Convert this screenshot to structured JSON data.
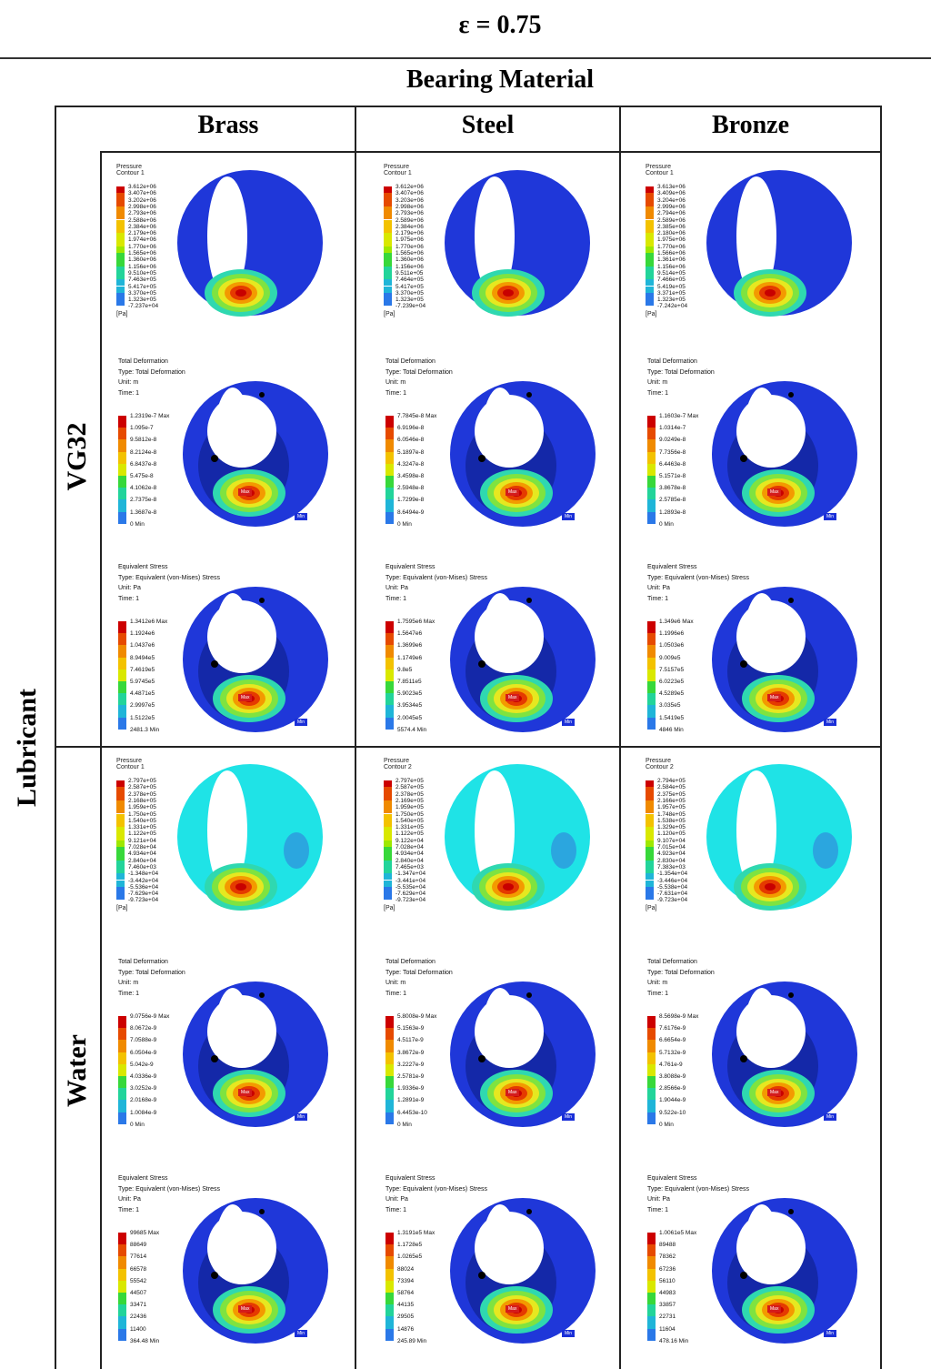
{
  "epsilon": "ε = 0.75",
  "group_header": "Bearing Material",
  "row_group_label": "Lubricant",
  "columns": [
    "Brass",
    "Steel",
    "Bronze"
  ],
  "rows": [
    "VG32",
    "Water"
  ],
  "colors": {
    "legend": [
      "#cc0000",
      "#e64a00",
      "#f08a00",
      "#f3c200",
      "#d9e800",
      "#9ee800",
      "#37d83a",
      "#22d49a",
      "#1fb5d8",
      "#2a78e8",
      "#1e3fe0"
    ],
    "bearing_blue": "#1f37d9",
    "water_cyan": "#1fe3e6"
  },
  "panels": {
    "VG32": {
      "Brass": {
        "pressure": {
          "title": [
            "Pressure",
            "Contour 1"
          ],
          "unit": "[Pa]",
          "values": [
            "3.612e+06",
            "3.407e+06",
            "3.202e+06",
            "2.998e+06",
            "2.793e+06",
            "2.588e+06",
            "2.384e+06",
            "2.179e+06",
            "1.974e+06",
            "1.770e+06",
            "1.565e+06",
            "1.360e+06",
            "1.156e+06",
            "9.510e+05",
            "7.463e+05",
            "5.417e+05",
            "3.370e+05",
            "1.323e+05",
            "-7.237e+04"
          ]
        },
        "deformation": {
          "title": [
            "Total Deformation",
            "Type: Total Deformation",
            "Unit: m",
            "Time: 1"
          ],
          "values": [
            "1.2319e-7 Max",
            "1.095e-7",
            "9.5812e-8",
            "8.2124e-8",
            "6.8437e-8",
            "5.475e-8",
            "4.1062e-8",
            "2.7375e-8",
            "1.3687e-8",
            "0 Min"
          ]
        },
        "stress": {
          "title": [
            "Equivalent Stress",
            "Type: Equivalent (von-Mises) Stress",
            "Unit: Pa",
            "Time: 1"
          ],
          "values": [
            "1.3412e6 Max",
            "1.1924e6",
            "1.0437e6",
            "8.9494e5",
            "7.4619e5",
            "5.9745e5",
            "4.4871e5",
            "2.9997e5",
            "1.5122e5",
            "2481.3 Min"
          ]
        }
      },
      "Steel": {
        "pressure": {
          "title": [
            "Pressure",
            "Contour 1"
          ],
          "unit": "[Pa]",
          "values": [
            "3.612e+06",
            "3.407e+06",
            "3.203e+06",
            "2.998e+06",
            "2.793e+06",
            "2.589e+06",
            "2.384e+06",
            "2.179e+06",
            "1.975e+06",
            "1.770e+06",
            "1.565e+06",
            "1.360e+06",
            "1.156e+06",
            "9.511e+05",
            "7.464e+05",
            "5.417e+05",
            "3.370e+05",
            "1.323e+05",
            "-7.239e+04"
          ]
        },
        "deformation": {
          "title": [
            "Total Deformation",
            "Type: Total Deformation",
            "Unit: m",
            "Time: 1"
          ],
          "values": [
            "7.7845e-8 Max",
            "6.9196e-8",
            "6.0546e-8",
            "5.1897e-8",
            "4.3247e-8",
            "3.4598e-8",
            "2.5948e-8",
            "1.7299e-8",
            "8.6494e-9",
            "0 Min"
          ]
        },
        "stress": {
          "title": [
            "Equivalent Stress",
            "Type: Equivalent (von-Mises) Stress",
            "Unit: Pa",
            "Time: 1"
          ],
          "values": [
            "1.7595e6 Max",
            "1.5647e6",
            "1.3699e6",
            "1.1749e6",
            "9.8e5",
            "7.8511e5",
            "5.9023e5",
            "3.9534e5",
            "2.0045e5",
            "5574.4 Min"
          ]
        }
      },
      "Bronze": {
        "pressure": {
          "title": [
            "Pressure",
            "Contour 1"
          ],
          "unit": "[Pa]",
          "values": [
            "3.613e+06",
            "3.409e+06",
            "3.204e+06",
            "2.999e+06",
            "2.794e+06",
            "2.589e+06",
            "2.385e+06",
            "2.180e+06",
            "1.975e+06",
            "1.770e+06",
            "1.566e+06",
            "1.361e+06",
            "1.156e+06",
            "9.514e+05",
            "7.466e+05",
            "5.419e+05",
            "3.371e+05",
            "1.323e+05",
            "-7.242e+04"
          ]
        },
        "deformation": {
          "title": [
            "Total Deformation",
            "Type: Total Deformation",
            "Unit: m",
            "Time: 1"
          ],
          "values": [
            "1.1603e-7 Max",
            "1.0314e-7",
            "9.0249e-8",
            "7.7356e-8",
            "6.4463e-8",
            "5.1571e-8",
            "3.8678e-8",
            "2.5785e-8",
            "1.2893e-8",
            "0 Min"
          ]
        },
        "stress": {
          "title": [
            "Equivalent Stress",
            "Type: Equivalent (von-Mises) Stress",
            "Unit: Pa",
            "Time: 1"
          ],
          "values": [
            "1.349e6 Max",
            "1.1996e6",
            "1.0503e6",
            "9.009e5",
            "7.5157e5",
            "6.0223e5",
            "4.5289e5",
            "3.035e5",
            "1.5419e5",
            "4846 Min"
          ]
        }
      }
    },
    "Water": {
      "Brass": {
        "pressure": {
          "title": [
            "Pressure",
            "Contour 1"
          ],
          "unit": "[Pa]",
          "values": [
            "2.797e+05",
            "2.587e+05",
            "2.378e+05",
            "2.168e+05",
            "1.959e+05",
            "1.750e+05",
            "1.540e+05",
            "1.331e+05",
            "1.122e+05",
            "9.121e+04",
            "7.028e+04",
            "4.934e+04",
            "2.840e+04",
            "7.460e+03",
            "-1.348e+04",
            "-3.442e+04",
            "-5.536e+04",
            "-7.629e+04",
            "-9.723e+04"
          ]
        },
        "deformation": {
          "title": [
            "Total Deformation",
            "Type: Total Deformation",
            "Unit: m",
            "Time: 1"
          ],
          "values": [
            "9.0756e-9 Max",
            "8.0672e-9",
            "7.0588e-9",
            "6.0504e-9",
            "5.042e-9",
            "4.0336e-9",
            "3.0252e-9",
            "2.0168e-9",
            "1.0084e-9",
            "0 Min"
          ]
        },
        "stress": {
          "title": [
            "Equivalent Stress",
            "Type: Equivalent (von-Mises) Stress",
            "Unit: Pa",
            "Time: 1"
          ],
          "values": [
            "99685 Max",
            "88649",
            "77614",
            "66578",
            "55542",
            "44507",
            "33471",
            "22436",
            "11400",
            "364.48 Min"
          ]
        }
      },
      "Steel": {
        "pressure": {
          "title": [
            "Pressure",
            "Contour 2"
          ],
          "unit": "[Pa]",
          "values": [
            "2.797e+05",
            "2.587e+05",
            "2.378e+05",
            "2.169e+05",
            "1.959e+05",
            "1.750e+05",
            "1.540e+05",
            "1.331e+05",
            "1.122e+05",
            "9.122e+04",
            "7.028e+04",
            "4.934e+04",
            "2.840e+04",
            "7.465e+03",
            "-1.347e+04",
            "-3.441e+04",
            "-5.535e+04",
            "-7.629e+04",
            "-9.723e+04"
          ]
        },
        "deformation": {
          "title": [
            "Total Deformation",
            "Type: Total Deformation",
            "Unit: m",
            "Time: 1"
          ],
          "values": [
            "5.8008e-9 Max",
            "5.1563e-9",
            "4.5117e-9",
            "3.8672e-9",
            "3.2227e-9",
            "2.5781e-9",
            "1.9336e-9",
            "1.2891e-9",
            "6.4453e-10",
            "0 Min"
          ]
        },
        "stress": {
          "title": [
            "Equivalent Stress",
            "Type: Equivalent (von-Mises) Stress",
            "Unit: Pa",
            "Time: 1"
          ],
          "values": [
            "1.3191e5 Max",
            "1.1728e5",
            "1.0265e5",
            "88024",
            "73394",
            "58764",
            "44135",
            "29505",
            "14876",
            "245.89 Min"
          ]
        }
      },
      "Bronze": {
        "pressure": {
          "title": [
            "Pressure",
            "Contour 2"
          ],
          "unit": "[Pa]",
          "values": [
            "2.794e+05",
            "2.584e+05",
            "2.375e+05",
            "2.166e+05",
            "1.957e+05",
            "1.748e+05",
            "1.538e+05",
            "1.329e+05",
            "1.120e+05",
            "9.107e+04",
            "7.015e+04",
            "4.923e+04",
            "2.830e+04",
            "7.383e+03",
            "-1.354e+04",
            "-3.446e+04",
            "-5.538e+04",
            "-7.631e+04",
            "-9.723e+04"
          ]
        },
        "deformation": {
          "title": [
            "Total Deformation",
            "Type: Total Deformation",
            "Unit: m",
            "Time: 1"
          ],
          "values": [
            "8.5698e-9 Max",
            "7.6176e-9",
            "6.6654e-9",
            "5.7132e-9",
            "4.761e-9",
            "3.8088e-9",
            "2.8566e-9",
            "1.9044e-9",
            "9.522e-10",
            "0 Min"
          ]
        },
        "stress": {
          "title": [
            "Equivalent Stress",
            "Type: Equivalent (von-Mises) Stress",
            "Unit: Pa",
            "Time: 1"
          ],
          "values": [
            "1.0061e5 Max",
            "89488",
            "78362",
            "67236",
            "56110",
            "44983",
            "33857",
            "22731",
            "11604",
            "478.16 Min"
          ]
        }
      }
    }
  },
  "markers": {
    "max": "Max",
    "min": "Min"
  }
}
